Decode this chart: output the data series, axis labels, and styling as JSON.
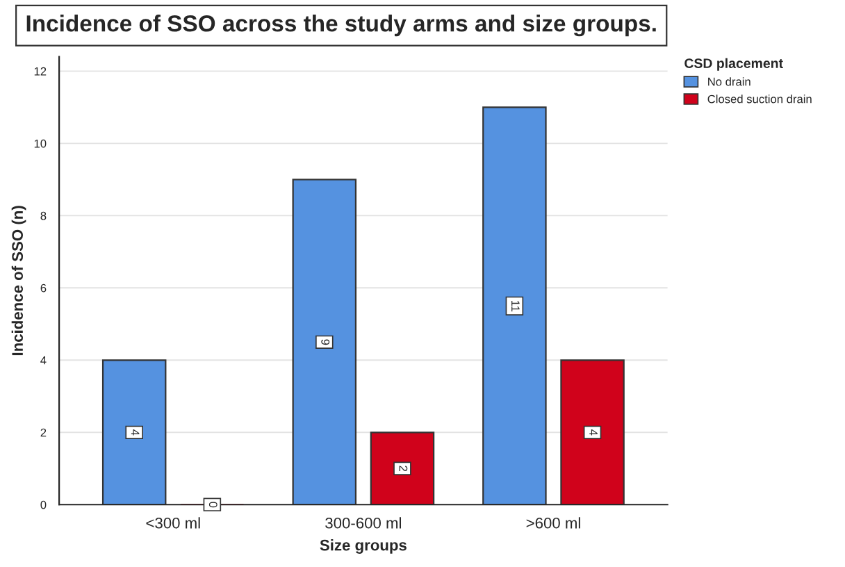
{
  "chart_data": {
    "type": "bar",
    "title": "Incidence of SSO across the study arms and size groups.",
    "xlabel": "Size groups",
    "ylabel": "Incidence of SSO (n)",
    "legend_title": "CSD placement",
    "categories": [
      "<300 ml",
      "300-600 ml",
      ">600 ml"
    ],
    "series": [
      {
        "name": "No drain",
        "color": "#5592e0",
        "values": [
          4,
          9,
          11
        ]
      },
      {
        "name": "Closed suction drain",
        "color": "#d0021b",
        "values": [
          0,
          2,
          4
        ]
      }
    ],
    "ylim": [
      0,
      12.4
    ],
    "yticks": [
      0,
      2,
      4,
      6,
      8,
      10,
      12
    ],
    "grid": "y",
    "legend": "top right",
    "data_labels": true
  }
}
